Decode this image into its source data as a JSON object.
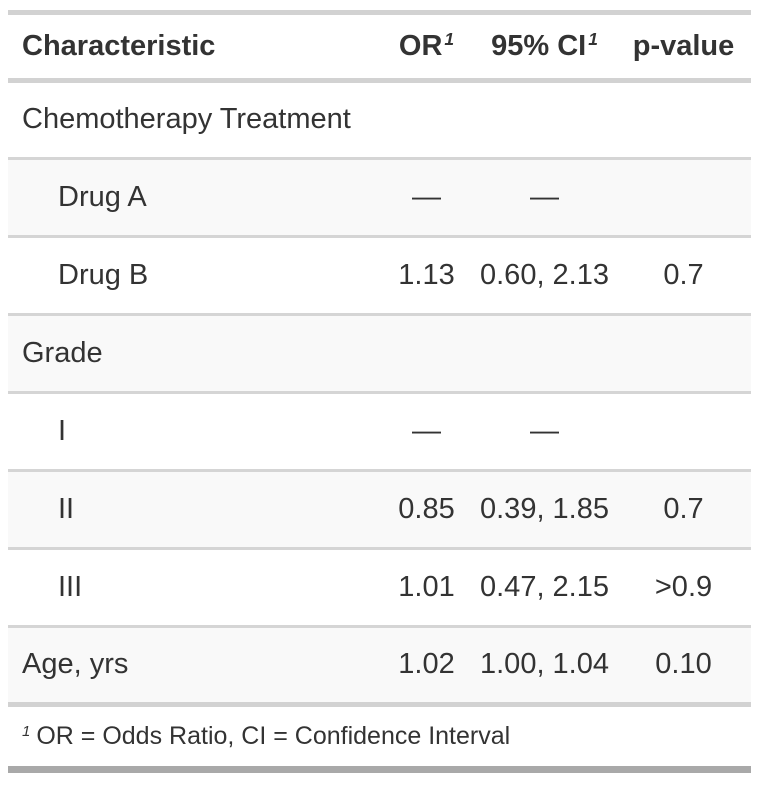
{
  "table": {
    "columns": [
      {
        "label": "Characteristic",
        "footnote_marker": ""
      },
      {
        "label": "OR",
        "footnote_marker": "1"
      },
      {
        "label": "95% CI",
        "footnote_marker": "1"
      },
      {
        "label": "p-value",
        "footnote_marker": ""
      }
    ],
    "rows": [
      {
        "label": "Chemotherapy Treatment",
        "or": "",
        "ci": "",
        "p": ""
      },
      {
        "label": "Drug A",
        "or": "—",
        "ci": "—",
        "p": ""
      },
      {
        "label": "Drug B",
        "or": "1.13",
        "ci": "0.60, 2.13",
        "p": "0.7"
      },
      {
        "label": "Grade",
        "or": "",
        "ci": "",
        "p": ""
      },
      {
        "label": "I",
        "or": "—",
        "ci": "—",
        "p": ""
      },
      {
        "label": "II",
        "or": "0.85",
        "ci": "0.39, 1.85",
        "p": "0.7"
      },
      {
        "label": "III",
        "or": "1.01",
        "ci": "0.47, 2.15",
        "p": ">0.9"
      },
      {
        "label": "Age, yrs",
        "or": "1.02",
        "ci": "1.00, 1.04",
        "p": "0.10"
      }
    ],
    "footnote": {
      "marker": "1",
      "text": "OR = Odds Ratio, CI = Confidence Interval"
    }
  },
  "chart_data": {
    "type": "table",
    "title": "",
    "columns": [
      "Characteristic",
      "OR",
      "95% CI",
      "p-value"
    ],
    "rows": [
      [
        "Chemotherapy Treatment",
        "",
        "",
        ""
      ],
      [
        "Drug A",
        "—",
        "—",
        ""
      ],
      [
        "Drug B",
        "1.13",
        "0.60, 2.13",
        "0.7"
      ],
      [
        "Grade",
        "",
        "",
        ""
      ],
      [
        "I",
        "—",
        "—",
        ""
      ],
      [
        "II",
        "0.85",
        "0.39, 1.85",
        "0.7"
      ],
      [
        "III",
        "1.01",
        "0.47, 2.15",
        ">0.9"
      ],
      [
        "Age, yrs",
        "1.02",
        "1.00, 1.04",
        "0.10"
      ]
    ],
    "footnote": "1 OR = Odds Ratio, CI = Confidence Interval",
    "layout_hints": {
      "numeric_columns_alignment": "center",
      "striped_rows": [
        1,
        3,
        5,
        7
      ],
      "indented_rows": [
        1,
        2,
        4,
        5,
        6
      ]
    }
  },
  "colors": {
    "text": "#333333",
    "stripe_background": "#f9f9f9",
    "border_light": "#d2d2d2",
    "border_row": "#d5d5d5",
    "border_bottom_dark": "#a9a9a9",
    "page_background": "#ffffff"
  }
}
